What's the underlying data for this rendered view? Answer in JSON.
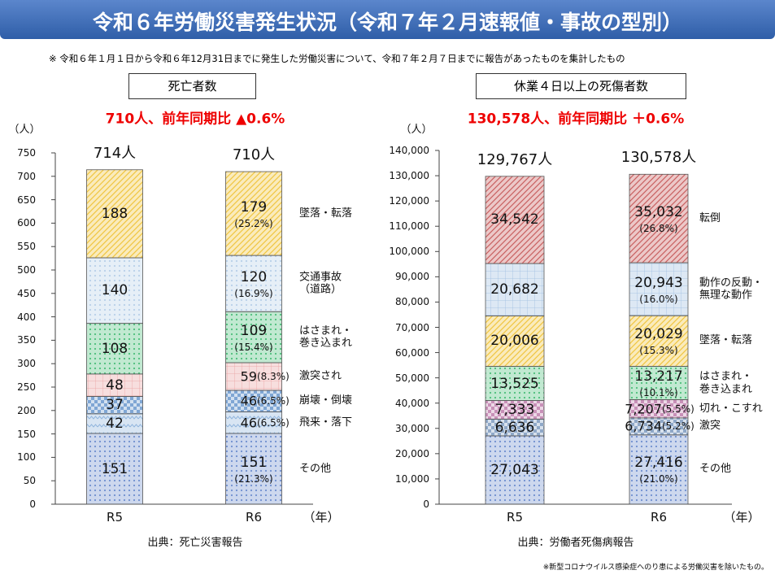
{
  "header": {
    "title": "令和６年労働災害発生状況（令和７年２月速報値・事故の型別）",
    "note": "※ 令和６年１月１日から令和６年12月31日までに発生した労働災害について、令和７年２月７日までに報告があったものを集計したもの"
  },
  "footnote": "※新型コロナウイルス感染症へのり患による労働災害を除いたもの。",
  "chart_data": [
    {
      "type": "stacked_bar",
      "box_label": "死亡者数",
      "subtitle": "710人、前年同期比 ▲0.6%",
      "y_unit": "（人）",
      "x_unit": "（年）",
      "source": "出典：死亡災害報告",
      "categories": [
        "R5",
        "R6"
      ],
      "totals": {
        "values": [
          714,
          710
        ],
        "value_labels": [
          "714人",
          "710人"
        ]
      },
      "ylim": [
        0,
        750
      ],
      "yticks": [
        0,
        50,
        100,
        150,
        200,
        250,
        300,
        350,
        400,
        450,
        500,
        550,
        600,
        650,
        700,
        750
      ],
      "series": [
        {
          "name": "その他",
          "color": "#6f8fcf",
          "pattern": "dots",
          "values": [
            151,
            151
          ],
          "shares": [
            null,
            {
              "value": 21.3,
              "label": "(21.3%)"
            }
          ]
        },
        {
          "name": "飛来・落下",
          "color": "#8fb4dc",
          "pattern": "wave",
          "values": [
            42,
            46
          ],
          "shares": [
            null,
            {
              "value": 6.5,
              "label": "(6.5%)"
            }
          ]
        },
        {
          "name": "崩壊・倒壊",
          "color": "#7fa6d4",
          "pattern": "check",
          "values": [
            37,
            46
          ],
          "shares": [
            null,
            {
              "value": 6.5,
              "label": "(6.5%)"
            }
          ]
        },
        {
          "name": "激突され",
          "color": "#e8a0a0",
          "pattern": "grid",
          "values": [
            48,
            59
          ],
          "shares": [
            null,
            {
              "value": 8.3,
              "label": "(8.3%)"
            }
          ]
        },
        {
          "name": "はさまれ・\n巻き込まれ",
          "color": "#4cbf7a",
          "pattern": "dots",
          "values": [
            108,
            109
          ],
          "shares": [
            null,
            {
              "value": 15.4,
              "label": "(15.4%)"
            }
          ]
        },
        {
          "name": "交通事故\n（道路）",
          "color": "#b8d0e8",
          "pattern": "dots",
          "values": [
            140,
            120
          ],
          "shares": [
            null,
            {
              "value": 16.9,
              "label": "(16.9%)"
            }
          ]
        },
        {
          "name": "墜落・転落",
          "color": "#f0c540",
          "pattern": "diag",
          "values": [
            188,
            179
          ],
          "shares": [
            null,
            {
              "value": 25.2,
              "label": "(25.2%)"
            }
          ]
        }
      ]
    },
    {
      "type": "stacked_bar",
      "box_label": "休業４日以上の死傷者数",
      "subtitle": "130,578人、前年同期比 ＋0.6%",
      "y_unit": "（人）",
      "x_unit": "（年）",
      "source": "出典：労働者死傷病報告",
      "categories": [
        "R5",
        "R6"
      ],
      "totals": {
        "values": [
          129767,
          130578
        ],
        "value_labels": [
          "129,767人",
          "130,578人"
        ]
      },
      "ylim": [
        0,
        140000
      ],
      "yticks": [
        {
          "value": 0,
          "label": "0"
        },
        {
          "value": 10000,
          "label": "10,000"
        },
        {
          "value": 20000,
          "label": "20,000"
        },
        {
          "value": 30000,
          "label": "30,000"
        },
        {
          "value": 40000,
          "label": "40,000"
        },
        {
          "value": 50000,
          "label": "50,000"
        },
        {
          "value": 60000,
          "label": "60,000"
        },
        {
          "value": 70000,
          "label": "70,000"
        },
        {
          "value": 80000,
          "label": "80,000"
        },
        {
          "value": 90000,
          "label": "90,000"
        },
        {
          "value": 100000,
          "label": "100,000"
        },
        {
          "value": 110000,
          "label": "110,000"
        },
        {
          "value": 120000,
          "label": "120,000"
        },
        {
          "value": 130000,
          "label": "130,000"
        },
        {
          "value": 140000,
          "label": "140,000"
        }
      ],
      "series": [
        {
          "name": "その他",
          "color": "#6f8fcf",
          "pattern": "dots",
          "values": [
            27043,
            27416
          ],
          "value_labels": [
            "27,043",
            "27,416"
          ],
          "shares": [
            null,
            {
              "value": 21.0,
              "label": "(21.0%)"
            }
          ]
        },
        {
          "name": "激突",
          "color": "#8fa8c8",
          "pattern": "check",
          "values": [
            6636,
            6734
          ],
          "value_labels": [
            "6,636",
            "6,734"
          ],
          "shares": [
            null,
            {
              "value": 5.2,
              "label": "(5.2%)"
            }
          ]
        },
        {
          "name": "切れ・こすれ",
          "color": "#c890b8",
          "pattern": "check",
          "values": [
            7333,
            7207
          ],
          "value_labels": [
            "7,333",
            "7,207"
          ],
          "shares": [
            null,
            {
              "value": 5.5,
              "label": "(5.5%)"
            }
          ]
        },
        {
          "name": "はさまれ・\n巻き込まれ",
          "color": "#4cbf7a",
          "pattern": "dots",
          "values": [
            13525,
            13217
          ],
          "value_labels": [
            "13,525",
            "13,217"
          ],
          "shares": [
            null,
            {
              "value": 10.1,
              "label": "(10.1%)"
            }
          ]
        },
        {
          "name": "墜落・転落",
          "color": "#f0c540",
          "pattern": "diag",
          "values": [
            20006,
            20029
          ],
          "value_labels": [
            "20,006",
            "20,029"
          ],
          "shares": [
            null,
            {
              "value": 15.3,
              "label": "(15.3%)"
            }
          ]
        },
        {
          "name": "動作の反動・\n無理な動作",
          "color": "#9dbde0",
          "pattern": "grid",
          "values": [
            20682,
            20943
          ],
          "value_labels": [
            "20,682",
            "20,943"
          ],
          "shares": [
            null,
            {
              "value": 16.0,
              "label": "(16.0%)"
            }
          ]
        },
        {
          "name": "転倒",
          "color": "#c86060",
          "pattern": "diag",
          "values": [
            34542,
            35032
          ],
          "value_labels": [
            "34,542",
            "35,032"
          ],
          "shares": [
            null,
            {
              "value": 26.8,
              "label": "(26.8%)"
            }
          ]
        }
      ]
    }
  ]
}
